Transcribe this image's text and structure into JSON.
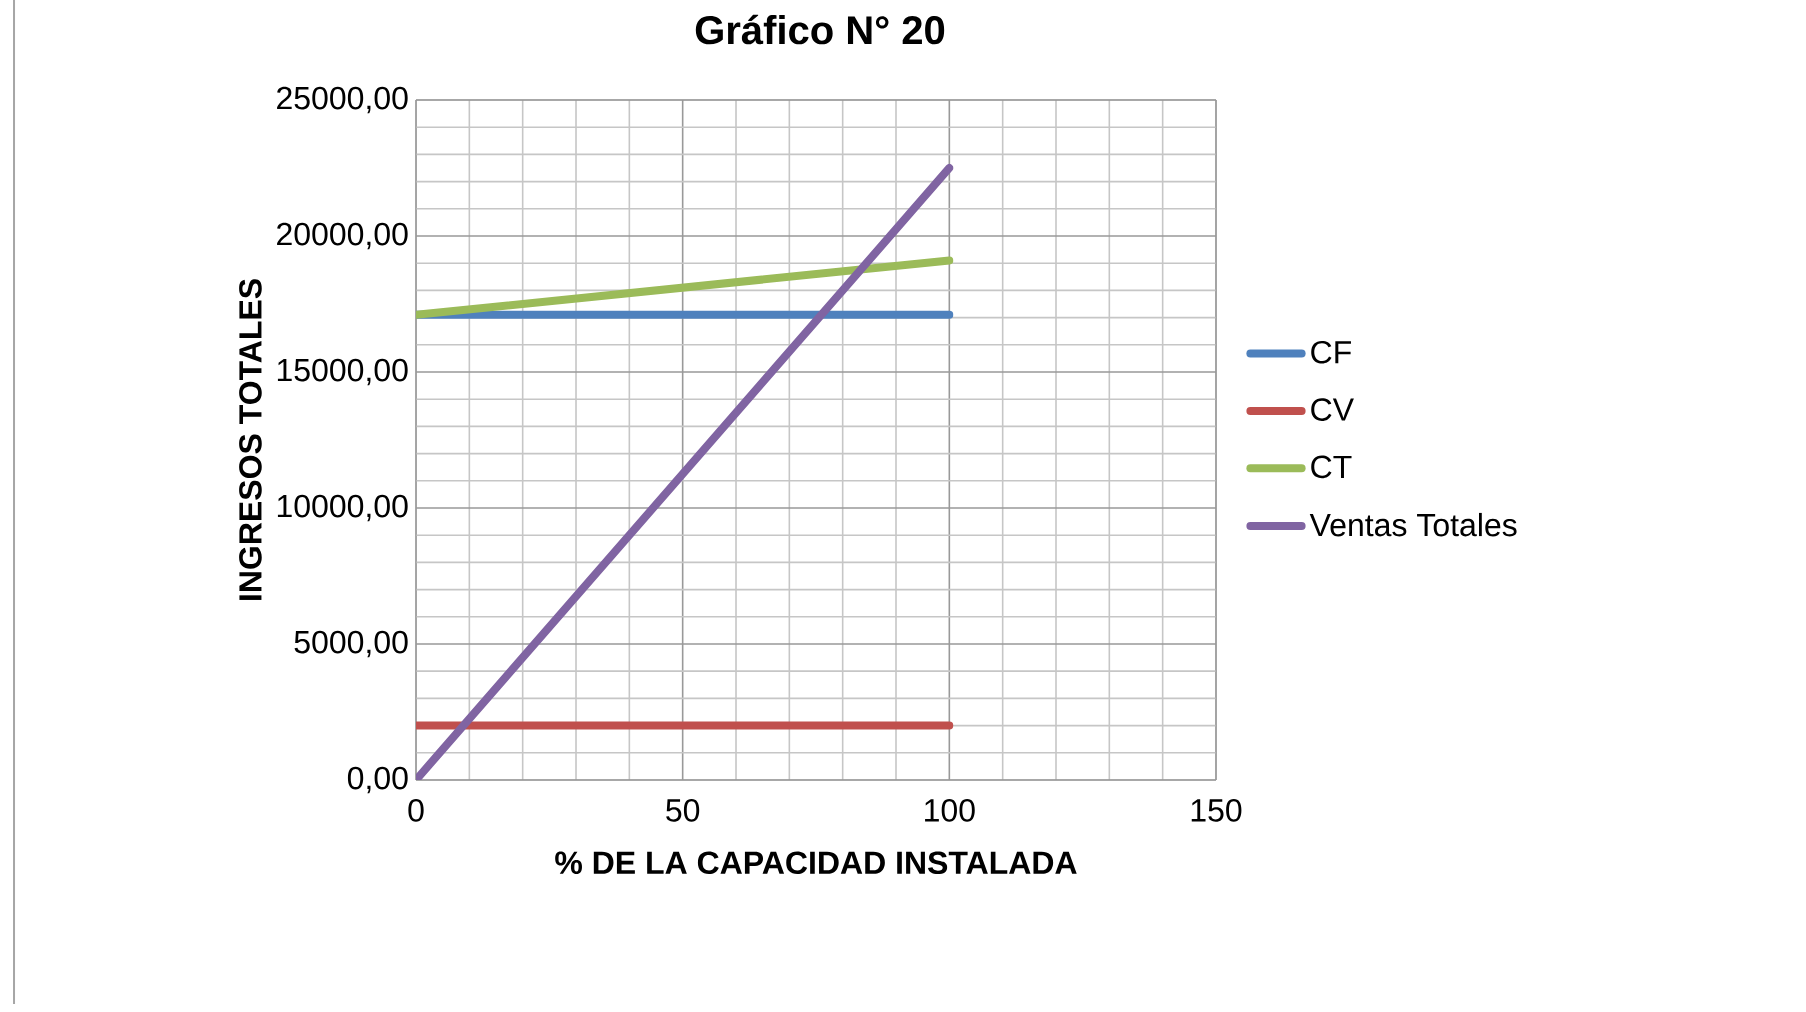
{
  "chart_data": {
    "type": "line",
    "title": "Gráfico N° 20",
    "xlabel": "% DE LA CAPACIDAD INSTALADA",
    "ylabel": "INGRESOS TOTALES",
    "x": [
      0,
      100
    ],
    "series": [
      {
        "name": "CF",
        "color": "#4f81bd",
        "values": [
          17100,
          17100
        ]
      },
      {
        "name": "CV",
        "color": "#c0504d",
        "values": [
          2000,
          2000
        ]
      },
      {
        "name": "CT",
        "color": "#9bbb59",
        "values": [
          17100,
          19100
        ]
      },
      {
        "name": "Ventas Totales",
        "color": "#8064a2",
        "values": [
          0,
          22500
        ]
      }
    ],
    "xlim": [
      0,
      150
    ],
    "xticks": [
      0,
      50,
      100,
      150
    ],
    "ylim": [
      0,
      25000
    ],
    "yticks": [
      {
        "value": 0,
        "label": "0,00"
      },
      {
        "value": 5000,
        "label": "5000,00"
      },
      {
        "value": 10000,
        "label": "10000,00"
      },
      {
        "value": 15000,
        "label": "15000,00"
      },
      {
        "value": 20000,
        "label": "20000,00"
      },
      {
        "value": 25000,
        "label": "25000,00"
      }
    ],
    "grid": true,
    "legend": "right",
    "marker": "none",
    "line_style": "solid"
  }
}
